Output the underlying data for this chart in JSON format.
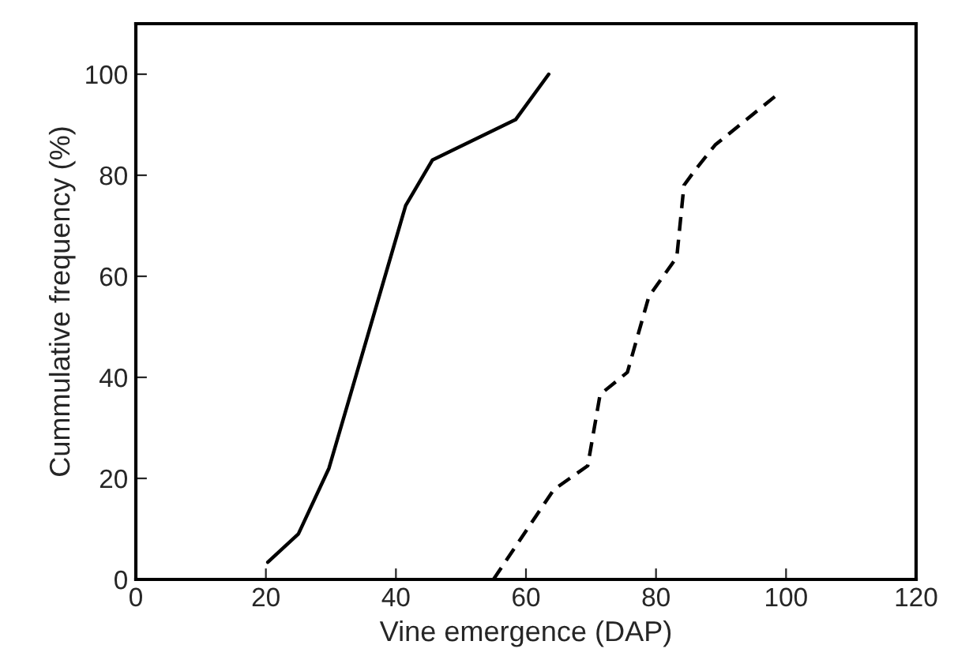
{
  "chart_data": {
    "type": "line",
    "xlabel": "Vine emergence (DAP)",
    "ylabel": "Cummulative frequency (%)",
    "xlim": [
      0,
      120
    ],
    "xticks": [
      0,
      20,
      40,
      60,
      80,
      100,
      120
    ],
    "ylim": [
      0,
      110
    ],
    "yticks": [
      0,
      20,
      40,
      60,
      80,
      100
    ],
    "grid": false,
    "legend": false,
    "series": [
      {
        "color": "#000000",
        "line_style": "solid",
        "x": [
          20.3,
          25,
          29.7,
          41.5,
          45.6,
          58.4,
          63.5
        ],
        "values": [
          3.4,
          9,
          22,
          74,
          83,
          91,
          100
        ]
      },
      {
        "color": "#000000",
        "line_style": "dashed",
        "x": [
          55,
          64.3,
          69.5,
          71.4,
          75.6,
          78.9,
          83.2,
          84.3,
          86,
          89.1,
          98.4
        ],
        "values": [
          0,
          17.8,
          22.5,
          36.6,
          41,
          56,
          63.8,
          78,
          81,
          86,
          95.7
        ]
      }
    ]
  }
}
